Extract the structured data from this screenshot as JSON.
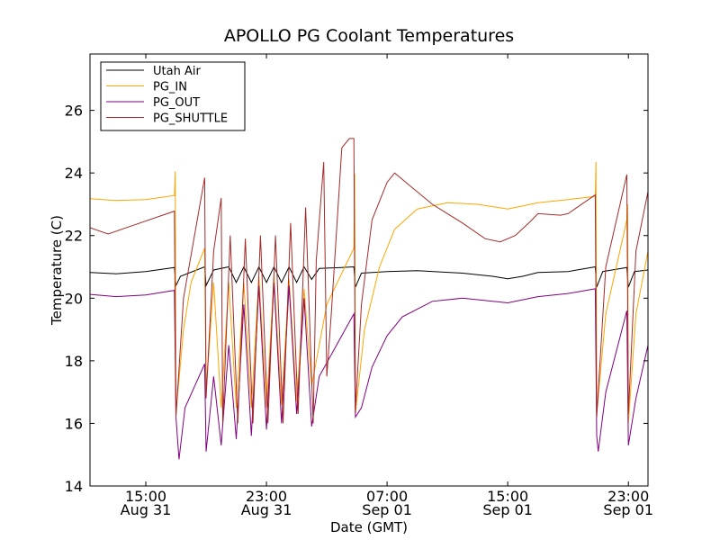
{
  "chart_data": {
    "type": "line",
    "title": "APOLLO PG Coolant Temperatures",
    "xlabel": "Date (GMT)",
    "ylabel": "Temperature (C)",
    "ylim": [
      14,
      27.8
    ],
    "xlim_hours": [
      11.3,
      48.3
    ],
    "yticks": [
      14,
      16,
      18,
      20,
      22,
      24,
      26
    ],
    "ytick_labels": [
      "14",
      "16",
      "18",
      "20",
      "22",
      "24",
      "26"
    ],
    "xticks": [
      {
        "hour": 15,
        "time": "15:00",
        "date": "Aug 31"
      },
      {
        "hour": 23,
        "time": "23:00",
        "date": "Aug 31"
      },
      {
        "hour": 31,
        "time": "07:00",
        "date": "Sep 01"
      },
      {
        "hour": 39,
        "time": "15:00",
        "date": "Sep 01"
      },
      {
        "hour": 47,
        "time": "23:00",
        "date": "Sep 01"
      }
    ],
    "legend": {
      "position": "top-left"
    },
    "series": [
      {
        "name": "Utah Air",
        "color": "#000000",
        "points": [
          [
            11.3,
            20.82
          ],
          [
            13.0,
            20.78
          ],
          [
            15.0,
            20.85
          ],
          [
            16.9,
            20.98
          ],
          [
            17.0,
            20.4
          ],
          [
            17.3,
            20.7
          ],
          [
            18.9,
            21.0
          ],
          [
            19.0,
            20.4
          ],
          [
            19.5,
            20.9
          ],
          [
            20.5,
            21.0
          ],
          [
            21.0,
            20.5
          ],
          [
            21.5,
            21.0
          ],
          [
            22.0,
            20.5
          ],
          [
            22.5,
            21.0
          ],
          [
            23.0,
            20.5
          ],
          [
            23.5,
            21.0
          ],
          [
            24.0,
            20.5
          ],
          [
            24.5,
            21.0
          ],
          [
            25.0,
            20.5
          ],
          [
            25.5,
            21.0
          ],
          [
            26.0,
            20.6
          ],
          [
            26.5,
            20.95
          ],
          [
            28.0,
            20.98
          ],
          [
            28.8,
            21.0
          ],
          [
            28.9,
            20.35
          ],
          [
            29.3,
            20.8
          ],
          [
            31.0,
            20.85
          ],
          [
            33.0,
            20.88
          ],
          [
            36.0,
            20.8
          ],
          [
            38.0,
            20.7
          ],
          [
            39.0,
            20.62
          ],
          [
            40.0,
            20.7
          ],
          [
            41.0,
            20.82
          ],
          [
            43.0,
            20.85
          ],
          [
            44.8,
            21.0
          ],
          [
            44.9,
            20.35
          ],
          [
            45.3,
            20.85
          ],
          [
            46.9,
            20.98
          ],
          [
            47.0,
            20.35
          ],
          [
            47.4,
            20.85
          ],
          [
            48.3,
            20.9
          ]
        ]
      },
      {
        "name": "PG_IN",
        "color": "#ffa500",
        "points": [
          [
            11.3,
            23.18
          ],
          [
            13.0,
            23.12
          ],
          [
            15.0,
            23.15
          ],
          [
            16.9,
            23.28
          ],
          [
            16.95,
            24.05
          ],
          [
            17.0,
            16.3
          ],
          [
            17.5,
            19.0
          ],
          [
            18.0,
            20.5
          ],
          [
            18.9,
            21.6
          ],
          [
            19.0,
            17.0
          ],
          [
            19.5,
            20.5
          ],
          [
            20.0,
            16.5
          ],
          [
            20.5,
            20.5
          ],
          [
            21.0,
            16.5
          ],
          [
            21.5,
            20.5
          ],
          [
            22.0,
            16.5
          ],
          [
            22.5,
            20.7
          ],
          [
            23.0,
            16.5
          ],
          [
            23.5,
            20.7
          ],
          [
            24.0,
            16.6
          ],
          [
            24.5,
            20.6
          ],
          [
            25.0,
            16.7
          ],
          [
            25.5,
            20.3
          ],
          [
            26.0,
            17.2
          ],
          [
            27.0,
            19.8
          ],
          [
            28.8,
            21.6
          ],
          [
            28.85,
            23.98
          ],
          [
            28.9,
            16.3
          ],
          [
            29.5,
            19.0
          ],
          [
            30.5,
            21.0
          ],
          [
            31.5,
            22.2
          ],
          [
            33.0,
            22.85
          ],
          [
            35.0,
            23.05
          ],
          [
            37.0,
            23.0
          ],
          [
            39.0,
            22.85
          ],
          [
            41.0,
            23.05
          ],
          [
            43.0,
            23.15
          ],
          [
            44.8,
            23.25
          ],
          [
            44.85,
            24.35
          ],
          [
            44.9,
            16.3
          ],
          [
            45.5,
            19.5
          ],
          [
            46.9,
            22.5
          ],
          [
            46.95,
            23.0
          ],
          [
            47.0,
            16.0
          ],
          [
            47.5,
            19.5
          ],
          [
            48.3,
            21.5
          ]
        ]
      },
      {
        "name": "PG_OUT",
        "color": "#800080",
        "points": [
          [
            11.3,
            20.12
          ],
          [
            13.0,
            20.05
          ],
          [
            15.0,
            20.1
          ],
          [
            16.9,
            20.25
          ],
          [
            17.0,
            16.2
          ],
          [
            17.2,
            14.85
          ],
          [
            17.6,
            16.5
          ],
          [
            18.9,
            17.9
          ],
          [
            19.0,
            15.1
          ],
          [
            19.5,
            17.5
          ],
          [
            20.0,
            15.3
          ],
          [
            20.5,
            18.5
          ],
          [
            21.0,
            15.5
          ],
          [
            21.5,
            19.8
          ],
          [
            22.0,
            15.6
          ],
          [
            22.5,
            20.4
          ],
          [
            23.0,
            15.8
          ],
          [
            23.5,
            20.5
          ],
          [
            24.0,
            16.0
          ],
          [
            24.5,
            20.4
          ],
          [
            25.0,
            16.3
          ],
          [
            25.5,
            20.0
          ],
          [
            26.0,
            15.9
          ],
          [
            26.5,
            17.5
          ],
          [
            28.8,
            19.5
          ],
          [
            28.9,
            16.2
          ],
          [
            29.3,
            16.5
          ],
          [
            30.0,
            17.8
          ],
          [
            31.0,
            18.8
          ],
          [
            32.0,
            19.4
          ],
          [
            34.0,
            19.9
          ],
          [
            36.0,
            20.0
          ],
          [
            38.0,
            19.9
          ],
          [
            39.0,
            19.85
          ],
          [
            41.0,
            20.05
          ],
          [
            43.0,
            20.15
          ],
          [
            44.8,
            20.3
          ],
          [
            44.9,
            15.6
          ],
          [
            45.0,
            15.1
          ],
          [
            45.5,
            17.0
          ],
          [
            46.9,
            19.6
          ],
          [
            47.0,
            15.3
          ],
          [
            47.5,
            16.8
          ],
          [
            48.3,
            18.5
          ]
        ]
      },
      {
        "name": "PG_SHUTTLE",
        "color": "#a52a2a",
        "points": [
          [
            11.3,
            22.25
          ],
          [
            12.5,
            22.05
          ],
          [
            14.0,
            22.3
          ],
          [
            16.9,
            22.78
          ],
          [
            17.0,
            16.2
          ],
          [
            17.5,
            20.0
          ],
          [
            18.9,
            23.85
          ],
          [
            19.0,
            16.8
          ],
          [
            19.5,
            21.5
          ],
          [
            20.0,
            23.2
          ],
          [
            20.1,
            16.0
          ],
          [
            20.6,
            22.0
          ],
          [
            21.1,
            16.0
          ],
          [
            21.6,
            21.9
          ],
          [
            22.1,
            16.0
          ],
          [
            22.6,
            22.0
          ],
          [
            23.1,
            16.0
          ],
          [
            23.6,
            22.0
          ],
          [
            24.1,
            16.0
          ],
          [
            24.6,
            22.4
          ],
          [
            25.1,
            16.3
          ],
          [
            25.6,
            22.9
          ],
          [
            26.1,
            16.0
          ],
          [
            26.3,
            21.2
          ],
          [
            26.8,
            24.35
          ],
          [
            27.0,
            17.5
          ],
          [
            27.3,
            19.5
          ],
          [
            28.0,
            24.8
          ],
          [
            28.5,
            25.1
          ],
          [
            28.8,
            25.1
          ],
          [
            28.9,
            16.4
          ],
          [
            29.3,
            19.8
          ],
          [
            30.0,
            22.5
          ],
          [
            31.0,
            23.7
          ],
          [
            31.5,
            24.0
          ],
          [
            32.5,
            23.6
          ],
          [
            34.0,
            23.0
          ],
          [
            36.0,
            22.4
          ],
          [
            37.5,
            21.9
          ],
          [
            38.5,
            21.8
          ],
          [
            39.5,
            22.0
          ],
          [
            40.5,
            22.45
          ],
          [
            41.0,
            22.7
          ],
          [
            42.5,
            22.65
          ],
          [
            43.0,
            22.7
          ],
          [
            44.8,
            23.3
          ],
          [
            44.9,
            16.2
          ],
          [
            45.5,
            21.0
          ],
          [
            46.9,
            23.95
          ],
          [
            47.0,
            16.3
          ],
          [
            47.5,
            21.5
          ],
          [
            48.3,
            23.4
          ]
        ]
      }
    ]
  }
}
